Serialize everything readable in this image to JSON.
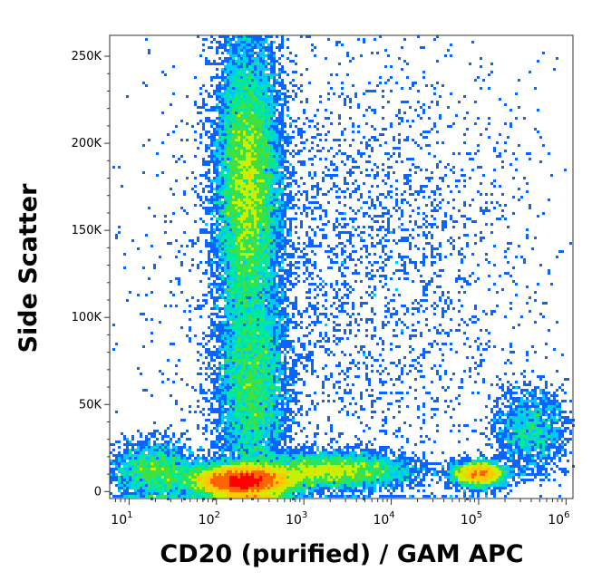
{
  "chart_data": {
    "type": "scatter",
    "subtype": "flow-cytometry-density-dot-plot",
    "xlabel": "CD20 (purified) / GAM APC",
    "ylabel": "Side Scatter",
    "x_scale": "log",
    "y_scale": "linear",
    "xlim": [
      6,
      1200000
    ],
    "ylim": [
      -4000,
      262000
    ],
    "x_ticks": [
      {
        "value": 10,
        "base": "10",
        "exp": "1"
      },
      {
        "value": 100,
        "base": "10",
        "exp": "2"
      },
      {
        "value": 1000,
        "base": "10",
        "exp": "3"
      },
      {
        "value": 10000,
        "base": "10",
        "exp": "4"
      },
      {
        "value": 100000,
        "base": "10",
        "exp": "5"
      },
      {
        "value": 1000000,
        "base": "10",
        "exp": "6"
      }
    ],
    "y_ticks": [
      {
        "value": 0,
        "label": "0"
      },
      {
        "value": 50000,
        "label": "50K"
      },
      {
        "value": 100000,
        "label": "100K"
      },
      {
        "value": 150000,
        "label": "150K"
      },
      {
        "value": 200000,
        "label": "200K"
      },
      {
        "value": 250000,
        "label": "250K"
      }
    ],
    "grid": false,
    "legend": "none",
    "colormap": [
      "#0000ff",
      "#0a64ff",
      "#00c8ff",
      "#00e8a0",
      "#40e040",
      "#c8f000",
      "#ffc800",
      "#ff6400",
      "#ff0000"
    ],
    "populations": [
      {
        "x_center": 200,
        "x_spread_decades": 0.28,
        "y_center": 6000,
        "y_spread": 4500,
        "weight": 0.3
      },
      {
        "x_center": 230,
        "x_spread_decades": 0.18,
        "y_center": 175000,
        "y_spread": 42000,
        "weight": 0.28
      },
      {
        "x_center": 260,
        "x_spread_decades": 0.2,
        "y_center": 60000,
        "y_spread": 30000,
        "weight": 0.12
      },
      {
        "x_center": 2000,
        "x_spread_decades": 0.45,
        "y_center": 12000,
        "y_spread": 5000,
        "weight": 0.1
      },
      {
        "x_center": 100000,
        "x_spread_decades": 0.15,
        "y_center": 10000,
        "y_spread": 3500,
        "weight": 0.06
      },
      {
        "x_center": 20,
        "x_spread_decades": 0.25,
        "y_center": 12000,
        "y_spread": 8000,
        "weight": 0.05
      },
      {
        "x_center": 3000,
        "x_spread_decades": 1.1,
        "y_center": 130000,
        "y_spread": 70000,
        "weight": 0.06
      },
      {
        "x_center": 400000,
        "x_spread_decades": 0.2,
        "y_center": 35000,
        "y_spread": 12000,
        "weight": 0.03
      }
    ]
  }
}
